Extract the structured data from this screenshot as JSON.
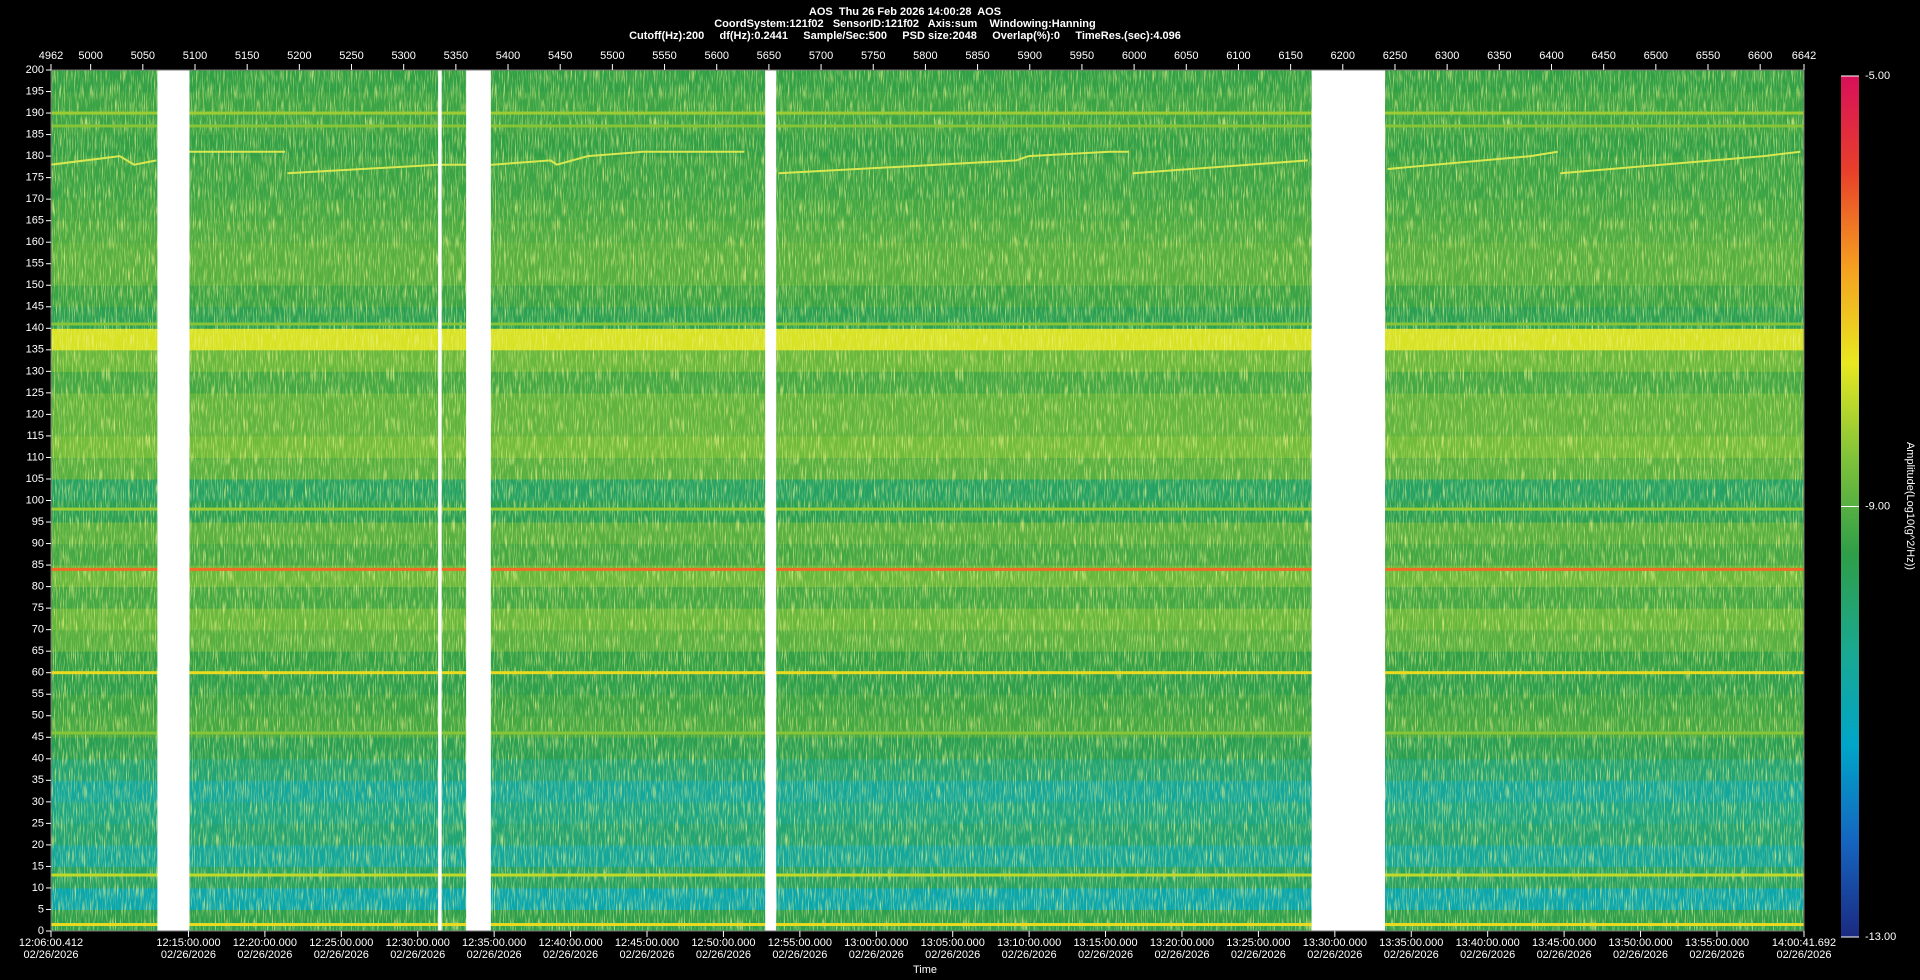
{
  "chart_data": {
    "type": "spectrogram",
    "title": "AOS  Thu 26 Feb 2026 14:00:28  AOS",
    "subtitles": [
      "CoordSystem:121f02   SensorID:121f02   Axis:sum    Windowing:Hanning",
      "Cutoff(Hz):200     df(Hz):0.2441     Sample/Sec:500     PSD size:2048     Overlap(%):0     TimeRes.(sec):4.096"
    ],
    "x_label": "Time",
    "x_date": "02/26/2026",
    "colorbar_label": "Amplitude(Log10(g^2/Hz))",
    "xlim": [
      43560.412,
      50441.692
    ],
    "xticks": [
      {
        "value": 43560.412,
        "label": "12:06:00.412"
      },
      {
        "value": 44100,
        "label": "12:15:00.000"
      },
      {
        "value": 44400,
        "label": "12:20:00.000"
      },
      {
        "value": 44700,
        "label": "12:25:00.000"
      },
      {
        "value": 45000,
        "label": "12:30:00.000"
      },
      {
        "value": 45300,
        "label": "12:35:00.000"
      },
      {
        "value": 45600,
        "label": "12:40:00.000"
      },
      {
        "value": 45900,
        "label": "12:45:00.000"
      },
      {
        "value": 46200,
        "label": "12:50:00.000"
      },
      {
        "value": 46500,
        "label": "12:55:00.000"
      },
      {
        "value": 46800,
        "label": "13:00:00.000"
      },
      {
        "value": 47100,
        "label": "13:05:00.000"
      },
      {
        "value": 47400,
        "label": "13:10:00.000"
      },
      {
        "value": 47700,
        "label": "13:15:00.000"
      },
      {
        "value": 48000,
        "label": "13:20:00.000"
      },
      {
        "value": 48300,
        "label": "13:25:00.000"
      },
      {
        "value": 48600,
        "label": "13:30:00.000"
      },
      {
        "value": 48900,
        "label": "13:35:00.000"
      },
      {
        "value": 49200,
        "label": "13:40:00.000"
      },
      {
        "value": 49500,
        "label": "13:45:00.000"
      },
      {
        "value": 49800,
        "label": "13:50:00.000"
      },
      {
        "value": 50100,
        "label": "13:55:00.000"
      },
      {
        "value": 50441.692,
        "label": "14:00:41.692"
      }
    ],
    "x2lim": [
      4962,
      6642
    ],
    "x2ticks": [
      4962,
      5000,
      5050,
      5100,
      5150,
      5200,
      5250,
      5300,
      5350,
      5400,
      5450,
      5500,
      5550,
      5600,
      5650,
      5700,
      5750,
      5800,
      5850,
      5900,
      5950,
      6000,
      6050,
      6100,
      6150,
      6200,
      6250,
      6300,
      6350,
      6400,
      6450,
      6500,
      6550,
      6600,
      6642
    ],
    "ylim": [
      0,
      200
    ],
    "yticks": [
      0,
      5,
      10,
      15,
      20,
      25,
      30,
      35,
      40,
      45,
      50,
      55,
      60,
      65,
      70,
      75,
      80,
      85,
      90,
      95,
      100,
      105,
      110,
      115,
      120,
      125,
      130,
      135,
      140,
      145,
      150,
      155,
      160,
      165,
      170,
      175,
      180,
      185,
      190,
      195,
      200
    ],
    "clim": [
      -13,
      -5
    ],
    "cticks": [
      {
        "value": -5,
        "label": "-5.00"
      },
      {
        "value": -9,
        "label": "-9.00"
      },
      {
        "value": -13,
        "label": "-13.00"
      }
    ],
    "colormap": [
      "#1b2a80",
      "#1565c0",
      "#00a5c8",
      "#1aa890",
      "#2e9e48",
      "#7fc23a",
      "#e8e820",
      "#f5a020",
      "#e8402a",
      "#d8105a"
    ],
    "bands": [
      0,
      5,
      10,
      15,
      20,
      25,
      30,
      35,
      40,
      45,
      50,
      55,
      60,
      65,
      70,
      75,
      80,
      85,
      90,
      95,
      100,
      105,
      110,
      115,
      120,
      125,
      130,
      135,
      140,
      145,
      150,
      155,
      160,
      165,
      170,
      175,
      180,
      185,
      190,
      195,
      200
    ],
    "amplitude": [
      -9.5,
      -10.8,
      -9.8,
      -10.5,
      -10.0,
      -10.2,
      -10.5,
      -10.0,
      -9.6,
      -9.2,
      -9.3,
      -9.5,
      -9.4,
      -9.0,
      -8.8,
      -9.2,
      -8.8,
      -9.2,
      -9.0,
      -9.6,
      -9.8,
      -9.0,
      -8.7,
      -8.9,
      -8.9,
      -9.2,
      -8.8,
      -7.8,
      -9.6,
      -9.3,
      -9.0,
      -9.0,
      -9.1,
      -9.2,
      -9.3,
      -9.3,
      -9.4,
      -9.3,
      -9.3,
      -9.4
    ],
    "lines": [
      {
        "freq": 1.5,
        "amplitude": -7.5
      },
      {
        "freq": 13,
        "amplitude": -8
      },
      {
        "freq": 46,
        "amplitude": -8.5
      },
      {
        "freq": 60,
        "amplitude": -7.5
      },
      {
        "freq": 84,
        "amplitude": -6.3
      },
      {
        "freq": 98,
        "amplitude": -8.3
      },
      {
        "freq": 141,
        "amplitude": -8.5
      },
      {
        "freq": 187,
        "amplitude": -8.5
      },
      {
        "freq": 190,
        "amplitude": -8.3
      }
    ],
    "track_color": "#d8e850",
    "track": {
      "x": [
        43560,
        43830,
        43887,
        43974,
        null,
        44104,
        44479,
        null,
        44488,
        45080,
        45292,
        45522,
        45546,
        45667,
        45883,
        46282,
        null,
        46417,
        47350,
        47398,
        47715,
        47792,
        null,
        47807,
        48494,
        null,
        48807,
        49369,
        49475,
        null,
        49485,
        50283,
        50427
      ],
      "y": [
        178,
        180,
        178,
        179,
        null,
        181,
        181,
        null,
        176,
        178,
        178,
        179,
        178,
        180,
        181,
        181,
        null,
        176,
        179,
        180,
        181,
        181,
        null,
        176,
        179,
        null,
        177,
        180,
        181,
        null,
        176,
        180,
        181
      ]
    },
    "gaps": [
      [
        43978,
        44104
      ],
      [
        45080,
        45094
      ],
      [
        45190,
        45287
      ],
      [
        46364,
        46407
      ],
      [
        48509,
        48797
      ]
    ]
  }
}
